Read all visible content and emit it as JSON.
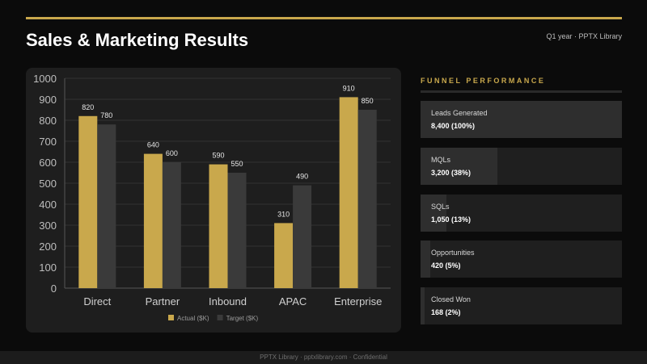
{
  "header": {
    "title": "Sales & Marketing Results",
    "subtitle": "Q1 year · PPTX Library"
  },
  "chart_data": {
    "type": "bar",
    "categories": [
      "Direct",
      "Partner",
      "Inbound",
      "APAC",
      "Enterprise"
    ],
    "series": [
      {
        "name": "Actual ($K)",
        "values": [
          820,
          640,
          590,
          310,
          910
        ],
        "color": "#c9a84c"
      },
      {
        "name": "Target ($K)",
        "values": [
          780,
          600,
          550,
          490,
          850
        ],
        "color": "#3a3a3a"
      }
    ],
    "yticks": [
      0,
      100,
      200,
      300,
      400,
      500,
      600,
      700,
      800,
      900,
      1000
    ],
    "ylim": [
      0,
      1000
    ],
    "grid": true,
    "legend_position": "bottom",
    "data_labels": true
  },
  "funnel": {
    "heading": "FUNNEL PERFORMANCE",
    "stages": [
      {
        "label": "Leads Generated",
        "value": "8,400 (100%)",
        "fraction": 1.0
      },
      {
        "label": "MQLs",
        "value": "3,200 (38%)",
        "fraction": 0.38
      },
      {
        "label": "SQLs",
        "value": "1,050 (13%)",
        "fraction": 0.13
      },
      {
        "label": "Opportunities",
        "value": "420 (5%)",
        "fraction": 0.05
      },
      {
        "label": "Closed Won",
        "value": "168 (2%)",
        "fraction": 0.02
      }
    ]
  },
  "footer": {
    "text": "PPTX Library · pptxlibrary.com · Confidential"
  }
}
